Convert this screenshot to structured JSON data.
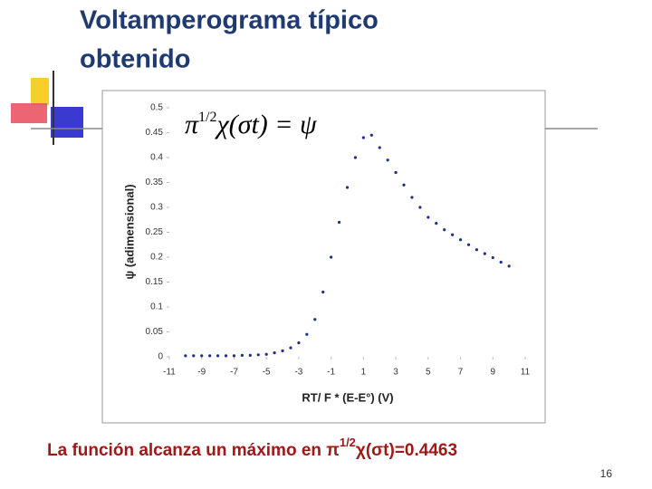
{
  "slide": {
    "title_lines": [
      "Voltamperograma típico",
      "obtenido"
    ],
    "caption_parts": [
      "La función alcanza un máximo en π",
      "1/2",
      "χ(σt)=0.4463"
    ],
    "page_number": "16"
  },
  "chart_data": {
    "type": "scatter",
    "annotation_parts": [
      "π",
      "1/2",
      "χ(σt) = ψ"
    ],
    "x_label": "RT/ F * (E-E°) (V)",
    "y_label": "ψ (adimensional)",
    "x": [
      -10,
      -9.5,
      -9,
      -8.5,
      -8,
      -7.5,
      -7,
      -6.5,
      -6,
      -5.5,
      -5,
      -4.5,
      -4,
      -3.5,
      -3,
      -2.5,
      -2,
      -1.5,
      -1,
      -0.5,
      0,
      0.5,
      1,
      1.5,
      2,
      2.5,
      3,
      3.5,
      4,
      4.5,
      5,
      5.5,
      6,
      6.5,
      7,
      7.5,
      8,
      8.5,
      9,
      9.5,
      10
    ],
    "series": [
      {
        "color": "#1f2f8a",
        "values": [
          0.002,
          0.002,
          0.002,
          0.002,
          0.002,
          0.002,
          0.002,
          0.003,
          0.003,
          0.004,
          0.005,
          0.008,
          0.012,
          0.018,
          0.028,
          0.045,
          0.075,
          0.13,
          0.2,
          0.27,
          0.34,
          0.4,
          0.44,
          0.445,
          0.42,
          0.395,
          0.37,
          0.345,
          0.32,
          0.3,
          0.28,
          0.268,
          0.255,
          0.245,
          0.235,
          0.225,
          0.215,
          0.207,
          0.199,
          0.19,
          0.182
        ]
      }
    ],
    "xlim": [
      -11,
      11
    ],
    "xticks": [
      -11,
      -9,
      -7,
      -5,
      -3,
      -1,
      1,
      3,
      5,
      7,
      9,
      11
    ],
    "ylim": [
      0,
      0.5
    ],
    "yticks": [
      0,
      0.05,
      0.1,
      0.15,
      0.2,
      0.25,
      0.3,
      0.35,
      0.4,
      0.45,
      0.5
    ]
  }
}
